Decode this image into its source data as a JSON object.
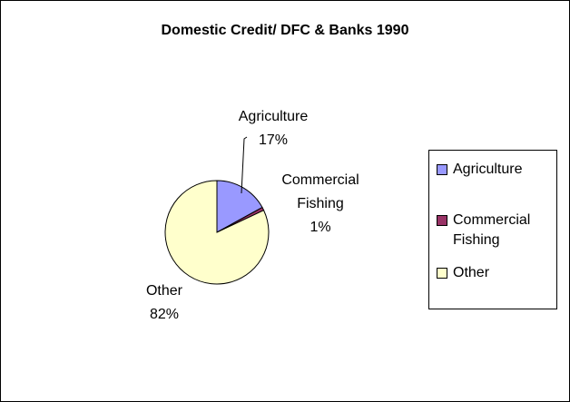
{
  "chart_data": {
    "type": "pie",
    "title": "Domestic Credit/ DFC & Banks 1990",
    "categories": [
      "Agriculture",
      "Commercial Fishing",
      "Other"
    ],
    "values": [
      17,
      1,
      82
    ],
    "value_labels": [
      "17%",
      "1%",
      "82%"
    ],
    "colors": [
      "#9999ff",
      "#993366",
      "#ffffcc"
    ],
    "legend": "right"
  }
}
